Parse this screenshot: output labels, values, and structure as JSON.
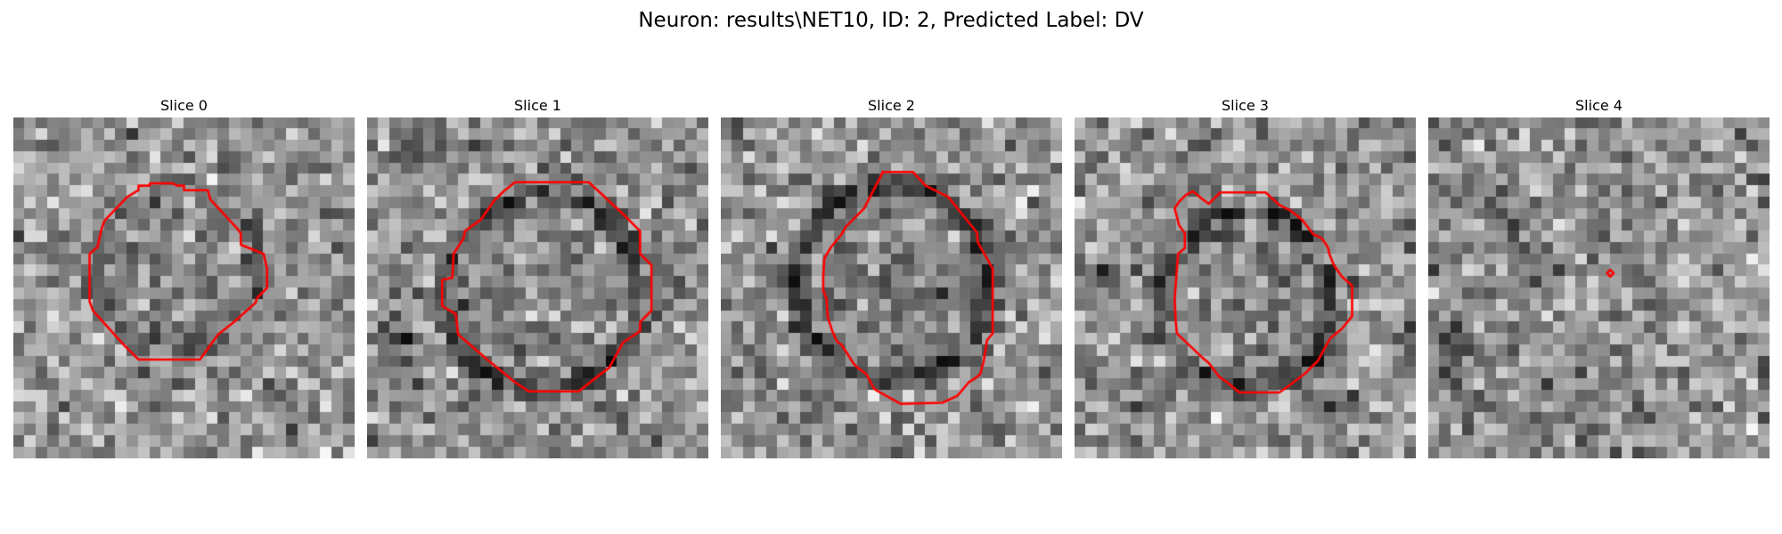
{
  "figure": {
    "title": "Neuron: results\\NET10, ID: 2, Predicted Label: DV",
    "contour_color": "#ff0000",
    "colormap": "gray"
  },
  "panels": [
    {
      "title": "Slice 0"
    },
    {
      "title": "Slice 1"
    },
    {
      "title": "Slice 2"
    },
    {
      "title": "Slice 3"
    },
    {
      "title": "Slice 4"
    }
  ]
}
